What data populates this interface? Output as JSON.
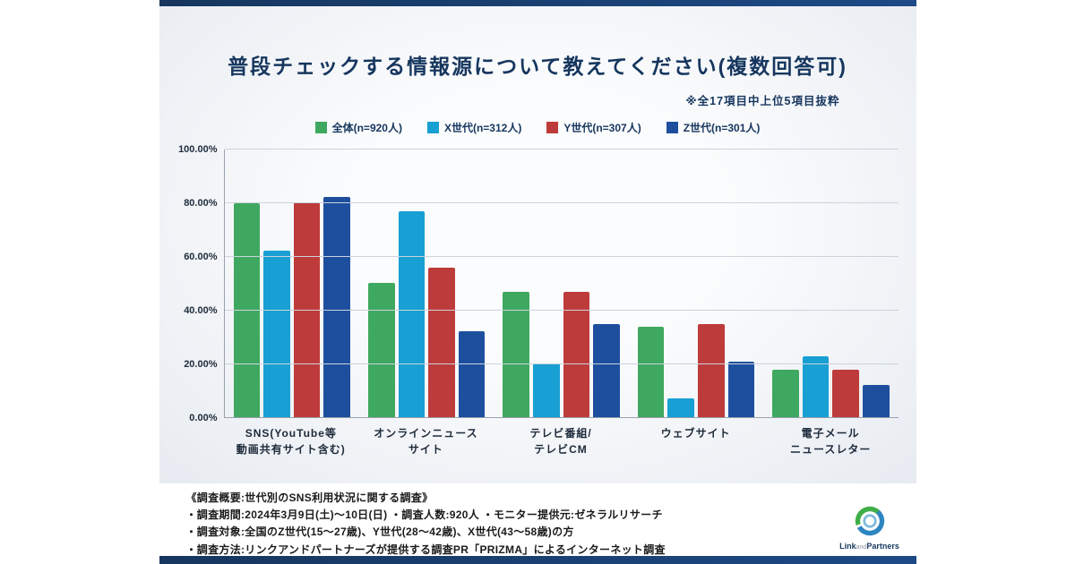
{
  "header": {
    "title": "普段チェックする情報源について教えてください(複数回答可)",
    "note": "※全17項目中上位5項目抜粋"
  },
  "chart_data": {
    "type": "bar",
    "title": "普段チェックする情報源について教えてください(複数回答可)",
    "subtitle": "※全17項目中上位5項目抜粋",
    "ylim": [
      0,
      100
    ],
    "yticks": [
      100,
      80,
      60,
      40,
      20,
      0
    ],
    "ytick_labels": [
      "100.00%",
      "80.00%",
      "60.00%",
      "40.00%",
      "20.00%",
      "0.00%"
    ],
    "grid": true,
    "legend_position": "top",
    "categories": [
      [
        "SNS(YouTube等",
        "動画共有サイト含む)"
      ],
      [
        "オンラインニュース",
        "サイト"
      ],
      [
        "テレビ番組/",
        "テレビCM"
      ],
      [
        "ウェブサイト"
      ],
      [
        "電子メール",
        "ニュースレター"
      ]
    ],
    "series": [
      {
        "name": "全体(n=920人)",
        "color": "#3fa860",
        "values": [
          80.0,
          50.5,
          47.0,
          34.0,
          18.0
        ]
      },
      {
        "name": "X世代(n=312人)",
        "color": "#189fd3",
        "values": [
          62.5,
          77.0,
          20.5,
          7.5,
          23.0
        ]
      },
      {
        "name": "Y世代(n=307人)",
        "color": "#be3b3b",
        "values": [
          80.5,
          56.0,
          47.0,
          35.0,
          18.0
        ]
      },
      {
        "name": "Z世代(n=301人)",
        "color": "#1d4f9e",
        "values": [
          82.5,
          32.5,
          35.0,
          21.0,
          12.5
        ]
      }
    ]
  },
  "footer": {
    "lines": [
      "《調査概要:世代別のSNS利用状況に関する調査》",
      "・調査期間:2024年3月9日(土)〜10日(日) ・調査人数:920人 ・モニター提供元:ゼネラルリサーチ",
      "・調査対象:全国のZ世代(15〜27歳)、Y世代(28〜42歳)、X世代(43〜58歳)の方",
      "・調査方法:リンクアンドパートナーズが提供する調査PR「PRIZMA」によるインターネット調査"
    ]
  },
  "logo": {
    "word1": "Link",
    "word2": "and",
    "word3": "Partners"
  }
}
